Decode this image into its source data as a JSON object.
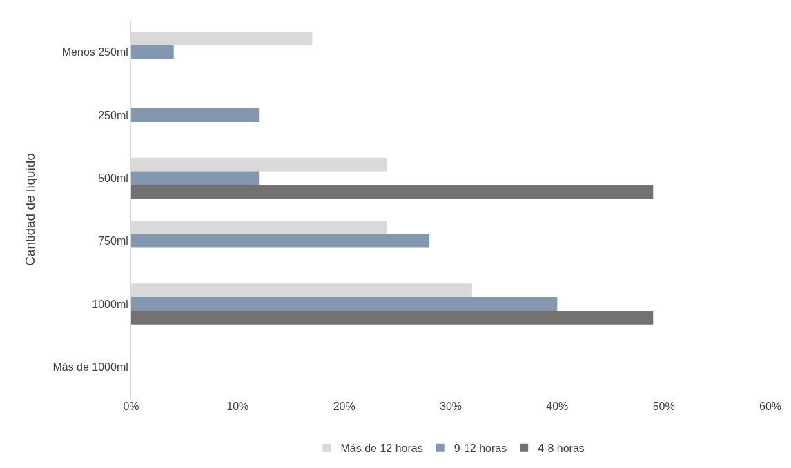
{
  "chart_data": {
    "type": "bar",
    "orientation": "horizontal",
    "ylabel": "Cantidad de líquido",
    "categories": [
      "Menos 250ml",
      "250ml",
      "500ml",
      "750ml",
      "1000ml",
      "Más de 1000ml"
    ],
    "series": [
      {
        "name": "Más de 12 horas",
        "color": "#d9d9d9",
        "values": [
          17,
          null,
          24,
          24,
          32,
          null
        ]
      },
      {
        "name": "9-12 horas",
        "color": "#8497b0",
        "values": [
          4,
          12,
          12,
          28,
          40,
          null
        ]
      },
      {
        "name": "4-8 horas",
        "color": "#767171",
        "values": [
          null,
          null,
          49,
          null,
          49,
          null
        ]
      }
    ],
    "xlim": [
      0,
      60
    ],
    "xticks": [
      {
        "value": 0,
        "label": "0%"
      },
      {
        "value": 10,
        "label": "10%"
      },
      {
        "value": 20,
        "label": "20%"
      },
      {
        "value": 30,
        "label": "30%"
      },
      {
        "value": 40,
        "label": "40%"
      },
      {
        "value": 50,
        "label": "50%"
      },
      {
        "value": 60,
        "label": "60%"
      }
    ],
    "legend": "bottom"
  }
}
